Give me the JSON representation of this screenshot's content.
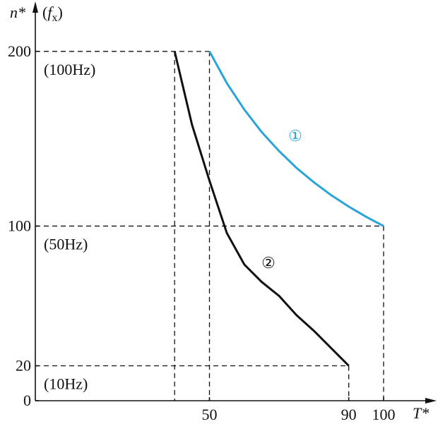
{
  "chart_data": {
    "type": "line",
    "xlabel": "T*",
    "ylabel": "n*",
    "ylabel_unit": {
      "open": "(",
      "symbol": "f",
      "subscript": "x",
      "close": ")"
    },
    "series": [
      {
        "name": "①",
        "color": "#2aa3d9",
        "x": [
          50,
          55,
          60,
          65,
          70,
          75,
          80,
          85,
          90,
          95,
          100
        ],
        "values": [
          200,
          181.8,
          166.7,
          153.8,
          142.9,
          133.3,
          125,
          117.6,
          111.1,
          105.3,
          100
        ]
      },
      {
        "name": "②",
        "color": "#111111",
        "x": [
          40,
          45,
          50,
          55,
          60,
          65,
          70,
          75,
          80,
          85,
          90
        ],
        "values": [
          200,
          158,
          126,
          96,
          78,
          68,
          60,
          49,
          40,
          30,
          20
        ]
      }
    ],
    "xlim": [
      0,
      114
    ],
    "ylim": [
      0,
      227
    ],
    "xticks": [
      50,
      90,
      100
    ],
    "yticks": [
      0,
      20,
      100,
      200
    ],
    "frequency_labels": [
      {
        "value": 20,
        "label": "(10Hz)"
      },
      {
        "value": 100,
        "label": "(50Hz)"
      },
      {
        "value": 200,
        "label": "(100Hz)"
      }
    ]
  }
}
